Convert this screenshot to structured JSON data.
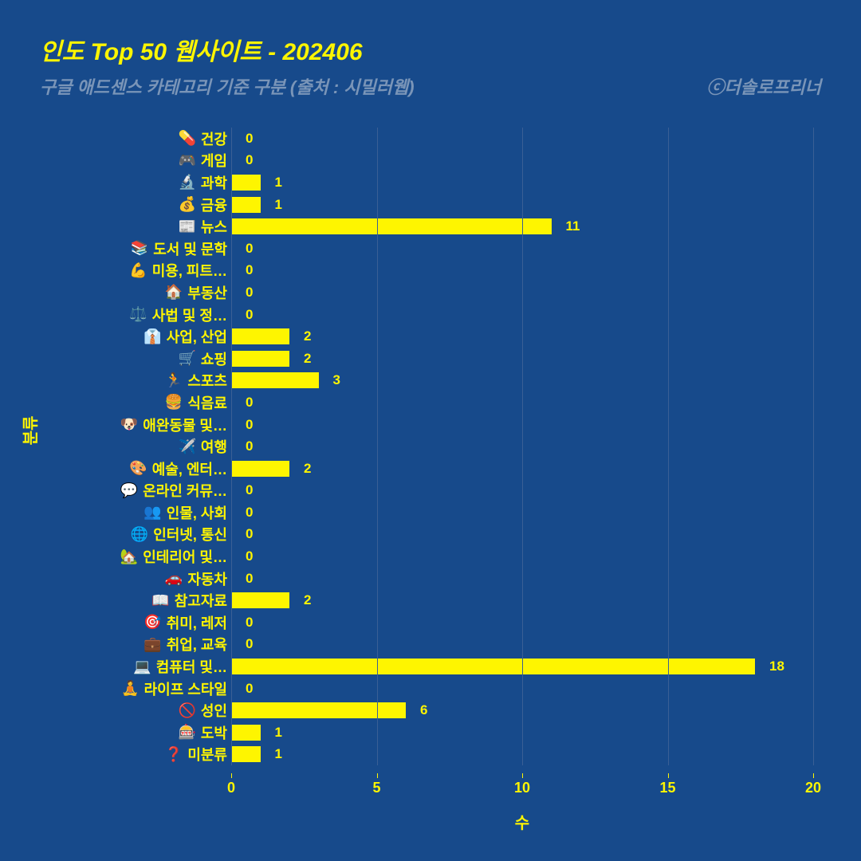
{
  "chart": {
    "type": "bar-horizontal",
    "title": "인도 Top 50 웹사이트 - 202406",
    "subtitle": "구글 애드센스 카테고리 기준 구분 (출처 : 시밀러웹)",
    "credit": "ⓒ더솔로프리너",
    "background_color": "#174a8b",
    "bar_color": "#fef500",
    "text_color": "#fef500",
    "subtitle_color": "#7a95b8",
    "grid_color": "#3a5f95",
    "title_fontsize": 30,
    "subtitle_fontsize": 22,
    "label_fontsize": 18,
    "value_fontsize": 17,
    "tick_fontsize": 18,
    "axis_title_fontsize": 20,
    "x_axis": {
      "title": "수",
      "min": 0,
      "max": 20,
      "ticks": [
        0,
        5,
        10,
        15,
        20
      ]
    },
    "y_axis": {
      "title": "분류"
    },
    "categories": [
      {
        "emoji": "💊",
        "label": "건강",
        "value": 0
      },
      {
        "emoji": "🎮",
        "label": "게임",
        "value": 0
      },
      {
        "emoji": "🔬",
        "label": "과학",
        "value": 1
      },
      {
        "emoji": "💰",
        "label": "금융",
        "value": 1
      },
      {
        "emoji": "📰",
        "label": "뉴스",
        "value": 11
      },
      {
        "emoji": "📚",
        "label": "도서 및 문학",
        "value": 0
      },
      {
        "emoji": "💪",
        "label": "미용, 피트…",
        "value": 0
      },
      {
        "emoji": "🏠",
        "label": "부동산",
        "value": 0
      },
      {
        "emoji": "⚖️",
        "label": "사법 및 정…",
        "value": 0
      },
      {
        "emoji": "👔",
        "label": "사업, 산업",
        "value": 2
      },
      {
        "emoji": "🛒",
        "label": "쇼핑",
        "value": 2
      },
      {
        "emoji": "🏃",
        "label": "스포츠",
        "value": 3
      },
      {
        "emoji": "🍔",
        "label": "식음료",
        "value": 0
      },
      {
        "emoji": "🐶",
        "label": "애완동물 및…",
        "value": 0
      },
      {
        "emoji": "✈️",
        "label": "여행",
        "value": 0
      },
      {
        "emoji": "🎨",
        "label": "예술, 엔터…",
        "value": 2
      },
      {
        "emoji": "💬",
        "label": "온라인 커뮤…",
        "value": 0
      },
      {
        "emoji": "👥",
        "label": "인물, 사회",
        "value": 0
      },
      {
        "emoji": "🌐",
        "label": "인터넷, 통신",
        "value": 0
      },
      {
        "emoji": "🏡",
        "label": "인테리어 및…",
        "value": 0
      },
      {
        "emoji": "🚗",
        "label": "자동차",
        "value": 0
      },
      {
        "emoji": "📖",
        "label": "참고자료",
        "value": 2
      },
      {
        "emoji": "🎯",
        "label": "취미, 레저",
        "value": 0
      },
      {
        "emoji": "💼",
        "label": "취업, 교육",
        "value": 0
      },
      {
        "emoji": "💻",
        "label": "컴퓨터 및…",
        "value": 18
      },
      {
        "emoji": "🧘",
        "label": "라이프 스타일",
        "value": 0
      },
      {
        "emoji": "🚫",
        "label": "성인",
        "value": 6
      },
      {
        "emoji": "🎰",
        "label": "도박",
        "value": 1
      },
      {
        "emoji": "❓",
        "label": "미분류",
        "value": 1
      }
    ]
  }
}
